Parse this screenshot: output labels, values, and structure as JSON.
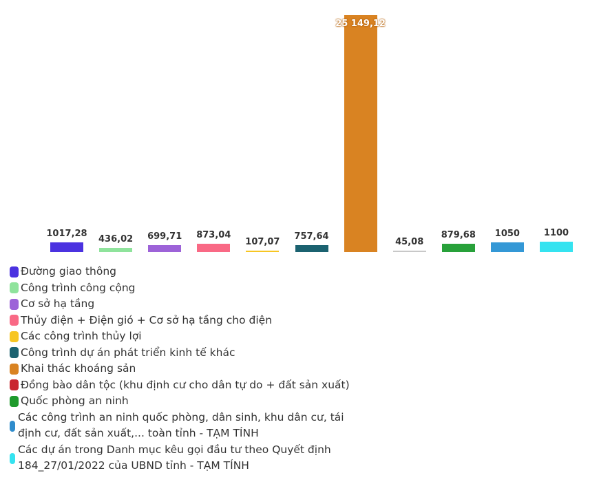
{
  "chart_data": {
    "type": "bar",
    "title": "",
    "xlabel": "",
    "ylabel": "",
    "grid": false,
    "legend_position": "bottom",
    "ylim": [
      0,
      25149.12
    ],
    "categories": [
      "Đường giao thông",
      "Công trình công cộng",
      "Cơ sở hạ tầng",
      "Thủy điện + Điện gió + Cơ sở hạ tầng cho điện",
      "Các công trình thủy lợi",
      "Công trình dự án phát triển kinh tế khác",
      "Khai thác khoáng sản",
      "Đồng bào dân tộc (khu định cư cho dân tự do + đất sản xuất)",
      "Quốc phòng an ninh",
      "Các công trình an ninh quốc phòng, dân sinh, khu dân cư, tái định cư, đất sản xuất,... toàn tỉnh - TẠM TÍNH",
      "Các dự án trong Danh mục kêu gọi đầu tư theo Quyết định 184_27/01/2022 của UBND tỉnh - TẠM TÍNH"
    ],
    "values": [
      1017.28,
      436.02,
      699.71,
      873.04,
      107.07,
      757.64,
      25149.12,
      45.08,
      879.68,
      1050,
      1100
    ],
    "labels": [
      "1017,28",
      "436,02",
      "699,71",
      "873,04",
      "107,07",
      "757,64",
      "25 149,12",
      "45,08",
      "879,68",
      "1050",
      "1100"
    ],
    "colors": [
      "#4b32e0",
      "#8fe39c",
      "#9d63d8",
      "#f96985",
      "#f7c623",
      "#1b6270",
      "#d98322",
      "#c8c8c8",
      "#28a13a",
      "#3498d6",
      "#35e3f0"
    ],
    "legend_colors": [
      "#4b32e0",
      "#8fe39c",
      "#9d63d8",
      "#f96985",
      "#f7c623",
      "#1b6270",
      "#d98322",
      "#c9272f",
      "#1f9a2c",
      "#2f8ccc",
      "#35e3f0"
    ]
  },
  "legend": {
    "items": [
      {
        "label": "Đường giao thông"
      },
      {
        "label": "Công trình công cộng"
      },
      {
        "label": "Cơ sở hạ tầng"
      },
      {
        "label": "Thủy điện + Điện gió + Cơ sở hạ tầng cho điện"
      },
      {
        "label": "Các công trình thủy lợi"
      },
      {
        "label": "Công trình dự án phát triển kinh tế khác"
      },
      {
        "label": "Khai thác khoáng sản"
      },
      {
        "label": "Đồng bào dân tộc (khu định cư cho dân tự do + đất sản xuất)"
      },
      {
        "label": "Quốc phòng an ninh"
      },
      {
        "label": "Các công trình an ninh quốc phòng, dân sinh, khu dân cư, tái định cư, đất sản xuất,... toàn tỉnh - TẠM TÍNH"
      },
      {
        "label": "Các dự án trong Danh mục kêu gọi đầu tư theo Quyết định 184_27/01/2022 của UBND tỉnh - TẠM TÍNH"
      }
    ]
  }
}
